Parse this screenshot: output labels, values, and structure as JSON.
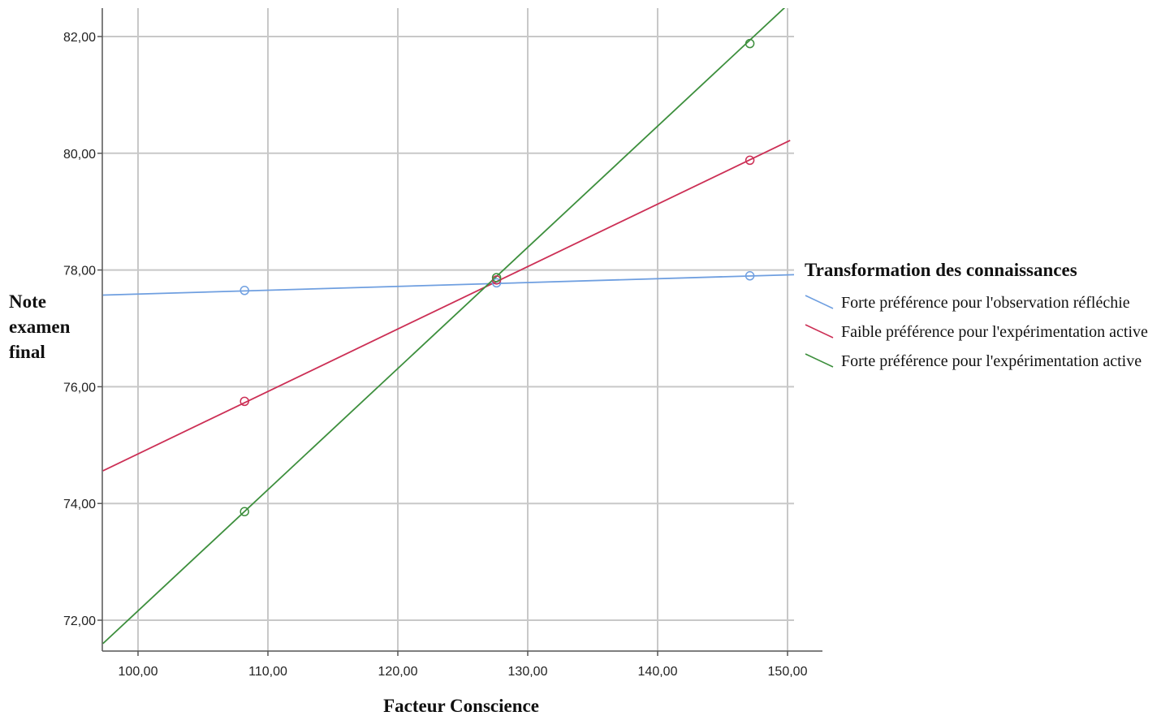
{
  "chart_data": {
    "type": "line",
    "title": "",
    "xlabel": "Facteur Conscience",
    "ylabel_lines": [
      "Note",
      "examen",
      "final"
    ],
    "xlim": [
      97.3,
      155
    ],
    "ylim": [
      71.5,
      82.5
    ],
    "x_ticks": [
      100,
      110,
      120,
      130,
      140,
      150
    ],
    "x_tick_labels": [
      "100,00",
      "110,00",
      "120,00",
      "130,00",
      "140,00",
      "150,00"
    ],
    "y_ticks": [
      72,
      74,
      76,
      78,
      80,
      82
    ],
    "y_tick_labels": [
      "72,00",
      "74,00",
      "76,00",
      "78,00",
      "80,00",
      "82,00"
    ],
    "grid": true,
    "legend": {
      "title": "Transformation des connaissances",
      "placement": "right"
    },
    "series": [
      {
        "name": "Forte préférence pour  l'observation réfléchie",
        "color": "#6f9fe0",
        "line": [
          [
            97.3,
            77.57
          ],
          [
            150.5,
            77.92
          ]
        ],
        "points": [
          [
            108.2,
            77.65
          ],
          [
            127.6,
            77.78
          ],
          [
            147.1,
            77.9
          ]
        ]
      },
      {
        "name": "Faible préférence pour l'expérimentation active",
        "color": "#cc2f55",
        "line": [
          [
            97.3,
            74.56
          ],
          [
            150.2,
            80.22
          ]
        ],
        "points": [
          [
            108.2,
            75.75
          ],
          [
            127.6,
            77.83
          ],
          [
            147.1,
            79.88
          ]
        ]
      },
      {
        "name": "Forte préférence pour l'expérimentation active",
        "color": "#3d8f3d",
        "line": [
          [
            97.3,
            71.6
          ],
          [
            149.9,
            82.52
          ]
        ],
        "points": [
          [
            108.2,
            73.86
          ],
          [
            127.6,
            77.87
          ],
          [
            147.1,
            81.88
          ]
        ]
      }
    ]
  }
}
